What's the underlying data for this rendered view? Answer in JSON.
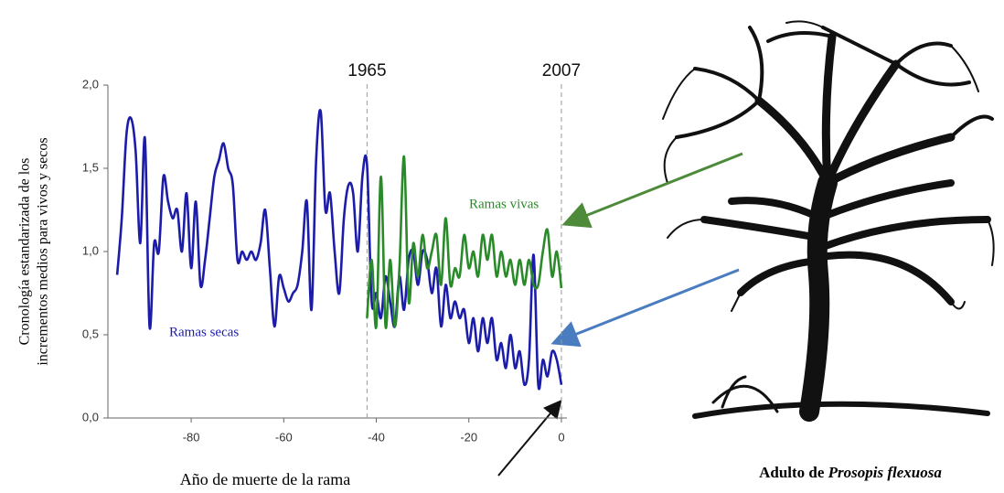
{
  "chart_data": {
    "type": "line",
    "y_label_lines": [
      "Cronología estandarizada de los",
      "incrementos medios para vivos y secos"
    ],
    "xlim": [
      -98,
      1
    ],
    "xticks": [
      -80,
      -60,
      -40,
      -20,
      0
    ],
    "ylim": [
      0,
      2
    ],
    "yticks": [
      {
        "value": 0,
        "label": "0,0"
      },
      {
        "value": 0.5,
        "label": "0,5"
      },
      {
        "value": 1,
        "label": "1,0"
      },
      {
        "value": 1.5,
        "label": "1,5"
      },
      {
        "value": 2,
        "label": "2,0"
      }
    ],
    "series": [
      {
        "name": "Ramas secas",
        "color": "#1c1caa",
        "x": [
          -96,
          -95,
          -94,
          -93,
          -92,
          -91,
          -90,
          -89,
          -88,
          -87,
          -86,
          -85,
          -84,
          -83,
          -82,
          -81,
          -80,
          -79,
          -78,
          -77,
          -76,
          -75,
          -74,
          -73,
          -72,
          -71,
          -70,
          -69,
          -68,
          -67,
          -66,
          -65,
          -64,
          -63,
          -62,
          -61,
          -60,
          -59,
          -58,
          -57,
          -56,
          -55,
          -54,
          -53,
          -52,
          -51,
          -50,
          -49,
          -48,
          -47,
          -46,
          -45,
          -44,
          -43,
          -42,
          -41,
          -40,
          -39,
          -38,
          -37,
          -36,
          -35,
          -34,
          -33,
          -32,
          -31,
          -30,
          -29,
          -28,
          -27,
          -26,
          -25,
          -24,
          -23,
          -22,
          -21,
          -20,
          -19,
          -18,
          -17,
          -16,
          -15,
          -14,
          -13,
          -12,
          -11,
          -10,
          -9,
          -8,
          -7,
          -6,
          -5,
          -4,
          -3,
          -2,
          -1,
          0
        ],
        "values": [
          0.86,
          1.2,
          1.7,
          1.8,
          1.6,
          1.05,
          1.68,
          0.55,
          1.05,
          1.0,
          1.45,
          1.3,
          1.2,
          1.25,
          1.0,
          1.35,
          0.9,
          1.3,
          0.8,
          0.95,
          1.2,
          1.45,
          1.55,
          1.65,
          1.5,
          1.4,
          0.95,
          1.0,
          0.95,
          1.0,
          0.95,
          1.05,
          1.25,
          0.9,
          0.55,
          0.85,
          0.78,
          0.7,
          0.75,
          0.8,
          1.0,
          1.3,
          0.65,
          1.55,
          1.84,
          1.25,
          1.35,
          1.0,
          0.75,
          1.2,
          1.4,
          1.35,
          1.0,
          1.45,
          1.52,
          0.7,
          0.75,
          0.6,
          0.85,
          0.7,
          0.55,
          0.85,
          0.65,
          0.95,
          1.0,
          0.8,
          1.0,
          0.95,
          0.75,
          0.9,
          0.55,
          0.8,
          0.6,
          0.7,
          0.6,
          0.65,
          0.45,
          0.6,
          0.4,
          0.6,
          0.45,
          0.6,
          0.35,
          0.45,
          0.3,
          0.5,
          0.3,
          0.4,
          0.2,
          0.35,
          0.98,
          0.2,
          0.35,
          0.25,
          0.4,
          0.35,
          0.2
        ]
      },
      {
        "name": "Ramas vivas",
        "color": "#2a8a2a",
        "x": [
          -42,
          -41,
          -40,
          -39,
          -38,
          -37,
          -36,
          -35,
          -34,
          -33,
          -32,
          -31,
          -30,
          -29,
          -28,
          -27,
          -26,
          -25,
          -24,
          -23,
          -22,
          -21,
          -20,
          -19,
          -18,
          -17,
          -16,
          -15,
          -14,
          -13,
          -12,
          -11,
          -10,
          -9,
          -8,
          -7,
          -6,
          -5,
          -4,
          -3,
          -2,
          -1,
          0
        ],
        "values": [
          0.6,
          0.95,
          0.55,
          1.45,
          0.55,
          0.95,
          0.55,
          0.9,
          1.57,
          0.7,
          1.05,
          0.85,
          1.1,
          0.9,
          1.0,
          1.1,
          0.8,
          1.2,
          0.8,
          0.9,
          0.85,
          1.1,
          0.9,
          1.0,
          0.85,
          1.1,
          0.95,
          1.1,
          0.85,
          1.0,
          0.85,
          0.95,
          0.8,
          0.95,
          0.8,
          0.95,
          0.8,
          0.8,
          1.0,
          1.13,
          0.85,
          1.0,
          0.78
        ]
      }
    ],
    "annotations": [
      {
        "label": "1965",
        "x": -42
      },
      {
        "label": "2007",
        "x": 0
      }
    ],
    "death_note": "Año de muerte de la rama",
    "caption": {
      "prefix": "Adulto de",
      "species": "Prosopis flexuosa"
    }
  }
}
